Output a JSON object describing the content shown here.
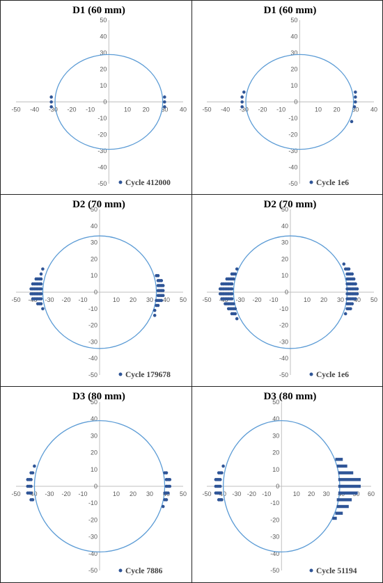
{
  "colors": {
    "circle": "#5b9bd5",
    "points": "#2f5597",
    "axis": "#bfbfbf",
    "tick_text": "#595959"
  },
  "chart_data": [
    {
      "type": "scatter",
      "title": "D1 (60 mm)",
      "xlim": [
        -50,
        40
      ],
      "ylim": [
        -50,
        50
      ],
      "xticks": [
        -50,
        -40,
        -30,
        -20,
        -10,
        0,
        10,
        20,
        30,
        40
      ],
      "yticks": [
        -50,
        -40,
        -30,
        -20,
        -10,
        0,
        10,
        20,
        30,
        40,
        50
      ],
      "circle_radius": 29,
      "legend": {
        "placement": "bottom-right"
      },
      "series": [
        {
          "name": "Cycle 412000",
          "points": [
            [
              30,
              3
            ],
            [
              30,
              0
            ],
            [
              30,
              -3
            ],
            [
              -31,
              3
            ],
            [
              -31,
              0
            ],
            [
              -31,
              -3
            ]
          ]
        }
      ]
    },
    {
      "type": "scatter",
      "title": "D1 (60 mm)",
      "xlim": [
        -50,
        40
      ],
      "ylim": [
        -50,
        50
      ],
      "xticks": [
        -50,
        -40,
        -30,
        -20,
        -10,
        0,
        10,
        20,
        30,
        40
      ],
      "yticks": [
        -50,
        -40,
        -30,
        -20,
        -10,
        0,
        10,
        20,
        30,
        40,
        50
      ],
      "circle_radius": 29,
      "legend": {
        "placement": "bottom-right"
      },
      "series": [
        {
          "name": "Cycle 1e6",
          "points": [
            [
              30,
              6
            ],
            [
              30,
              3
            ],
            [
              30,
              0
            ],
            [
              29.5,
              -3
            ],
            [
              28,
              -12
            ],
            [
              -30,
              6
            ],
            [
              -31,
              3
            ],
            [
              -31,
              0
            ],
            [
              -31,
              -3
            ]
          ]
        }
      ]
    },
    {
      "type": "scatter",
      "title": "D2 (70 mm)",
      "xlim": [
        -50,
        50
      ],
      "ylim": [
        -50,
        50
      ],
      "xticks": [
        -50,
        -40,
        -30,
        -20,
        -10,
        0,
        10,
        20,
        30,
        40,
        50
      ],
      "yticks": [
        -50,
        -40,
        -30,
        -20,
        -10,
        0,
        10,
        20,
        30,
        40,
        50
      ],
      "circle_radius": 34,
      "legend": {
        "placement": "bottom-right"
      },
      "series": [
        {
          "name": "Cycle 179678",
          "points": [
            [
              34,
              10
            ],
            [
              35,
              10
            ],
            [
              35,
              7
            ],
            [
              36,
              7
            ],
            [
              37,
              7
            ],
            [
              35,
              4
            ],
            [
              36,
              4
            ],
            [
              37,
              4
            ],
            [
              38,
              4
            ],
            [
              35,
              1
            ],
            [
              36,
              1
            ],
            [
              37,
              1
            ],
            [
              38,
              1
            ],
            [
              35,
              -2
            ],
            [
              36,
              -2
            ],
            [
              37,
              -2
            ],
            [
              38,
              -2
            ],
            [
              34,
              -5
            ],
            [
              35,
              -5
            ],
            [
              36,
              -5
            ],
            [
              37,
              -5
            ],
            [
              34,
              -8
            ],
            [
              35,
              -8
            ],
            [
              33,
              -11
            ],
            [
              33,
              -14
            ],
            [
              -34,
              14
            ],
            [
              -35,
              11
            ],
            [
              -35,
              8
            ],
            [
              -36,
              8
            ],
            [
              -37,
              8
            ],
            [
              -38,
              8
            ],
            [
              -35,
              5
            ],
            [
              -36,
              5
            ],
            [
              -37,
              5
            ],
            [
              -38,
              5
            ],
            [
              -39,
              5
            ],
            [
              -40,
              5
            ],
            [
              -35,
              2
            ],
            [
              -36,
              2
            ],
            [
              -37,
              2
            ],
            [
              -38,
              2
            ],
            [
              -39,
              2
            ],
            [
              -40,
              2
            ],
            [
              -41,
              2
            ],
            [
              -35,
              -1
            ],
            [
              -36,
              -1
            ],
            [
              -37,
              -1
            ],
            [
              -38,
              -1
            ],
            [
              -39,
              -1
            ],
            [
              -40,
              -1
            ],
            [
              -41,
              -1
            ],
            [
              -35,
              -4
            ],
            [
              -36,
              -4
            ],
            [
              -37,
              -4
            ],
            [
              -38,
              -4
            ],
            [
              -39,
              -4
            ],
            [
              -40,
              -4
            ],
            [
              -35,
              -7
            ],
            [
              -36,
              -7
            ],
            [
              -37,
              -7
            ],
            [
              -34,
              -10
            ]
          ]
        }
      ]
    },
    {
      "type": "scatter",
      "title": "D2 (70 mm)",
      "xlim": [
        -50,
        50
      ],
      "ylim": [
        -50,
        50
      ],
      "xticks": [
        -50,
        -40,
        -30,
        -20,
        -10,
        0,
        10,
        20,
        30,
        40,
        50
      ],
      "yticks": [
        -50,
        -40,
        -30,
        -20,
        -10,
        0,
        10,
        20,
        30,
        40,
        50
      ],
      "circle_radius": 34,
      "legend": {
        "placement": "bottom-right"
      },
      "series": [
        {
          "name": "Cycle 1e6",
          "points": [
            [
              32,
              17
            ],
            [
              33,
              14
            ],
            [
              34,
              14
            ],
            [
              35,
              14
            ],
            [
              34,
              11
            ],
            [
              35,
              11
            ],
            [
              36,
              11
            ],
            [
              37,
              11
            ],
            [
              34,
              8
            ],
            [
              35,
              8
            ],
            [
              36,
              8
            ],
            [
              37,
              8
            ],
            [
              38,
              8
            ],
            [
              34,
              5
            ],
            [
              35,
              5
            ],
            [
              36,
              5
            ],
            [
              37,
              5
            ],
            [
              38,
              5
            ],
            [
              39,
              5
            ],
            [
              34,
              2
            ],
            [
              35,
              2
            ],
            [
              36,
              2
            ],
            [
              37,
              2
            ],
            [
              38,
              2
            ],
            [
              39,
              2
            ],
            [
              40,
              2
            ],
            [
              34,
              -1
            ],
            [
              35,
              -1
            ],
            [
              36,
              -1
            ],
            [
              37,
              -1
            ],
            [
              38,
              -1
            ],
            [
              39,
              -1
            ],
            [
              40,
              -1
            ],
            [
              34,
              -4
            ],
            [
              35,
              -4
            ],
            [
              36,
              -4
            ],
            [
              37,
              -4
            ],
            [
              38,
              -4
            ],
            [
              39,
              -4
            ],
            [
              34,
              -7
            ],
            [
              35,
              -7
            ],
            [
              36,
              -7
            ],
            [
              37,
              -7
            ],
            [
              34,
              -10
            ],
            [
              35,
              -10
            ],
            [
              36,
              -10
            ],
            [
              33,
              -13
            ],
            [
              -32,
              14
            ],
            [
              -33,
              11
            ],
            [
              -34,
              11
            ],
            [
              -35,
              11
            ],
            [
              -34,
              8
            ],
            [
              -35,
              8
            ],
            [
              -36,
              8
            ],
            [
              -37,
              8
            ],
            [
              -38,
              8
            ],
            [
              -35,
              5
            ],
            [
              -36,
              5
            ],
            [
              -37,
              5
            ],
            [
              -38,
              5
            ],
            [
              -39,
              5
            ],
            [
              -40,
              5
            ],
            [
              -41,
              5
            ],
            [
              -35,
              2
            ],
            [
              -36,
              2
            ],
            [
              -37,
              2
            ],
            [
              -38,
              2
            ],
            [
              -39,
              2
            ],
            [
              -40,
              2
            ],
            [
              -41,
              2
            ],
            [
              -42,
              2
            ],
            [
              -35,
              -1
            ],
            [
              -36,
              -1
            ],
            [
              -37,
              -1
            ],
            [
              -38,
              -1
            ],
            [
              -39,
              -1
            ],
            [
              -40,
              -1
            ],
            [
              -41,
              -1
            ],
            [
              -42,
              -1
            ],
            [
              -35,
              -4
            ],
            [
              -36,
              -4
            ],
            [
              -37,
              -4
            ],
            [
              -38,
              -4
            ],
            [
              -39,
              -4
            ],
            [
              -40,
              -4
            ],
            [
              -41,
              -4
            ],
            [
              -34,
              -7
            ],
            [
              -35,
              -7
            ],
            [
              -36,
              -7
            ],
            [
              -37,
              -7
            ],
            [
              -38,
              -7
            ],
            [
              -39,
              -7
            ],
            [
              -33,
              -10
            ],
            [
              -34,
              -10
            ],
            [
              -35,
              -10
            ],
            [
              -36,
              -10
            ],
            [
              -37,
              -10
            ],
            [
              -33,
              -13
            ],
            [
              -34,
              -13
            ],
            [
              -35,
              -13
            ],
            [
              -32,
              -16
            ]
          ]
        }
      ]
    },
    {
      "type": "scatter",
      "title": "D3 (80 mm)",
      "xlim": [
        -50,
        50
      ],
      "ylim": [
        -50,
        50
      ],
      "xticks": [
        -50,
        -40,
        -30,
        -20,
        -10,
        0,
        10,
        20,
        30,
        40,
        50
      ],
      "yticks": [
        -50,
        -40,
        -30,
        -20,
        -10,
        0,
        10,
        20,
        30,
        40,
        50
      ],
      "circle_radius": 39,
      "legend": {
        "placement": "bottom-right"
      },
      "series": [
        {
          "name": "Cycle 7886",
          "points": [
            [
              39,
              8
            ],
            [
              40,
              8
            ],
            [
              40,
              4
            ],
            [
              41,
              4
            ],
            [
              42,
              4
            ],
            [
              40,
              0
            ],
            [
              41,
              0
            ],
            [
              42,
              0
            ],
            [
              39,
              -4
            ],
            [
              40,
              -4
            ],
            [
              41,
              -4
            ],
            [
              39,
              -8
            ],
            [
              40,
              -8
            ],
            [
              38,
              -12
            ],
            [
              -39,
              12
            ],
            [
              -40,
              8
            ],
            [
              -41,
              8
            ],
            [
              -41,
              4
            ],
            [
              -42,
              4
            ],
            [
              -43,
              4
            ],
            [
              -41,
              0
            ],
            [
              -42,
              0
            ],
            [
              -43,
              0
            ],
            [
              -41,
              -4
            ],
            [
              -42,
              -4
            ],
            [
              -43,
              -4
            ],
            [
              -40,
              -8
            ],
            [
              -41,
              -8
            ]
          ]
        }
      ]
    },
    {
      "type": "scatter",
      "title": "D3 (80 mm)",
      "xlim": [
        -50,
        60
      ],
      "ylim": [
        -50,
        50
      ],
      "xticks": [
        -50,
        -40,
        -30,
        -20,
        -10,
        0,
        10,
        20,
        30,
        40,
        50,
        60
      ],
      "yticks": [
        -50,
        -40,
        -30,
        -20,
        -10,
        0,
        10,
        20,
        30,
        40,
        50
      ],
      "circle_radius": 39,
      "legend": {
        "placement": "bottom-right"
      },
      "series": [
        {
          "name": "Cycle 51194",
          "points": [
            [
              -39,
              12
            ],
            [
              -40,
              8
            ],
            [
              -41,
              8
            ],
            [
              -42,
              8
            ],
            [
              -41,
              4
            ],
            [
              -42,
              4
            ],
            [
              -43,
              4
            ],
            [
              -44,
              4
            ],
            [
              -41,
              0
            ],
            [
              -42,
              0
            ],
            [
              -43,
              0
            ],
            [
              -44,
              0
            ],
            [
              -41,
              -4
            ],
            [
              -42,
              -4
            ],
            [
              -43,
              -4
            ],
            [
              -44,
              -4
            ],
            [
              -40,
              -8
            ],
            [
              -41,
              -8
            ],
            [
              -42,
              -8
            ]
          ]
        }
      ],
      "bars": [
        {
          "y": 16,
          "x0": 36,
          "x1": 41
        },
        {
          "y": 12,
          "x0": 37,
          "x1": 44
        },
        {
          "y": 8,
          "x0": 38,
          "x1": 48
        },
        {
          "y": 4,
          "x0": 38,
          "x1": 53
        },
        {
          "y": 0,
          "x0": 38,
          "x1": 53
        },
        {
          "y": -4,
          "x0": 38,
          "x1": 51
        },
        {
          "y": -8,
          "x0": 37,
          "x1": 47
        },
        {
          "y": -12,
          "x0": 37,
          "x1": 45
        },
        {
          "y": -16,
          "x0": 36,
          "x1": 41
        },
        {
          "y": -19,
          "x0": 34,
          "x1": 37
        }
      ]
    }
  ]
}
